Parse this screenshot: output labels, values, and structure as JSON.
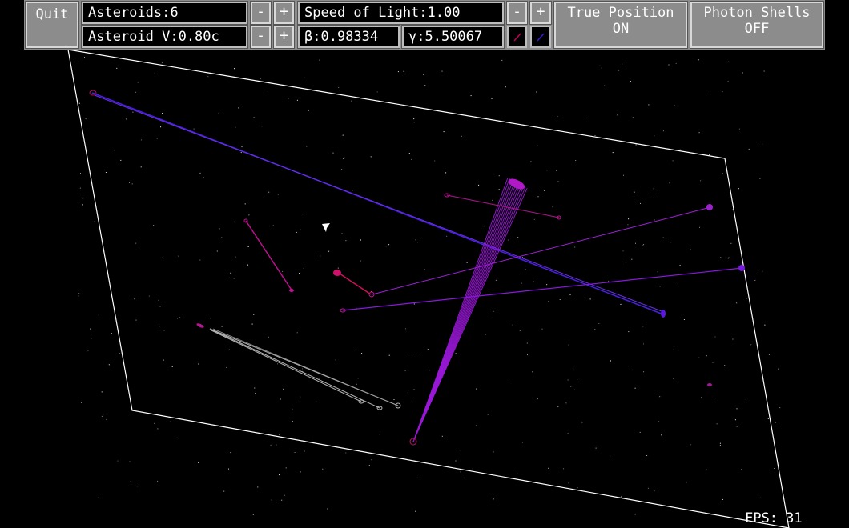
{
  "toolbar": {
    "quit_label": "Quit",
    "asteroids_count": "Asteroids:6",
    "asteroid_velocity": "Asteroid V:0.80c",
    "speed_of_light": "Speed of Light:1.00",
    "beta": "β:0.98334",
    "gamma": "γ:5.50067",
    "minus_label": "-",
    "plus_label": "+",
    "true_position_label": "True Position",
    "true_position_state": "ON",
    "photon_shells_label": "Photon Shells",
    "photon_shells_state": "OFF",
    "swatch_red": "#c0005a",
    "swatch_blue": "#3a1ad0"
  },
  "fps": "FPS: 31",
  "colors": {
    "frame": "#ffffff",
    "blue_trail": "#4a20e0",
    "purple_trail": "#9a18d8",
    "magenta_trail": "#c01090",
    "grey_trail": "#b4b4b4",
    "stars": "#ffffff"
  }
}
